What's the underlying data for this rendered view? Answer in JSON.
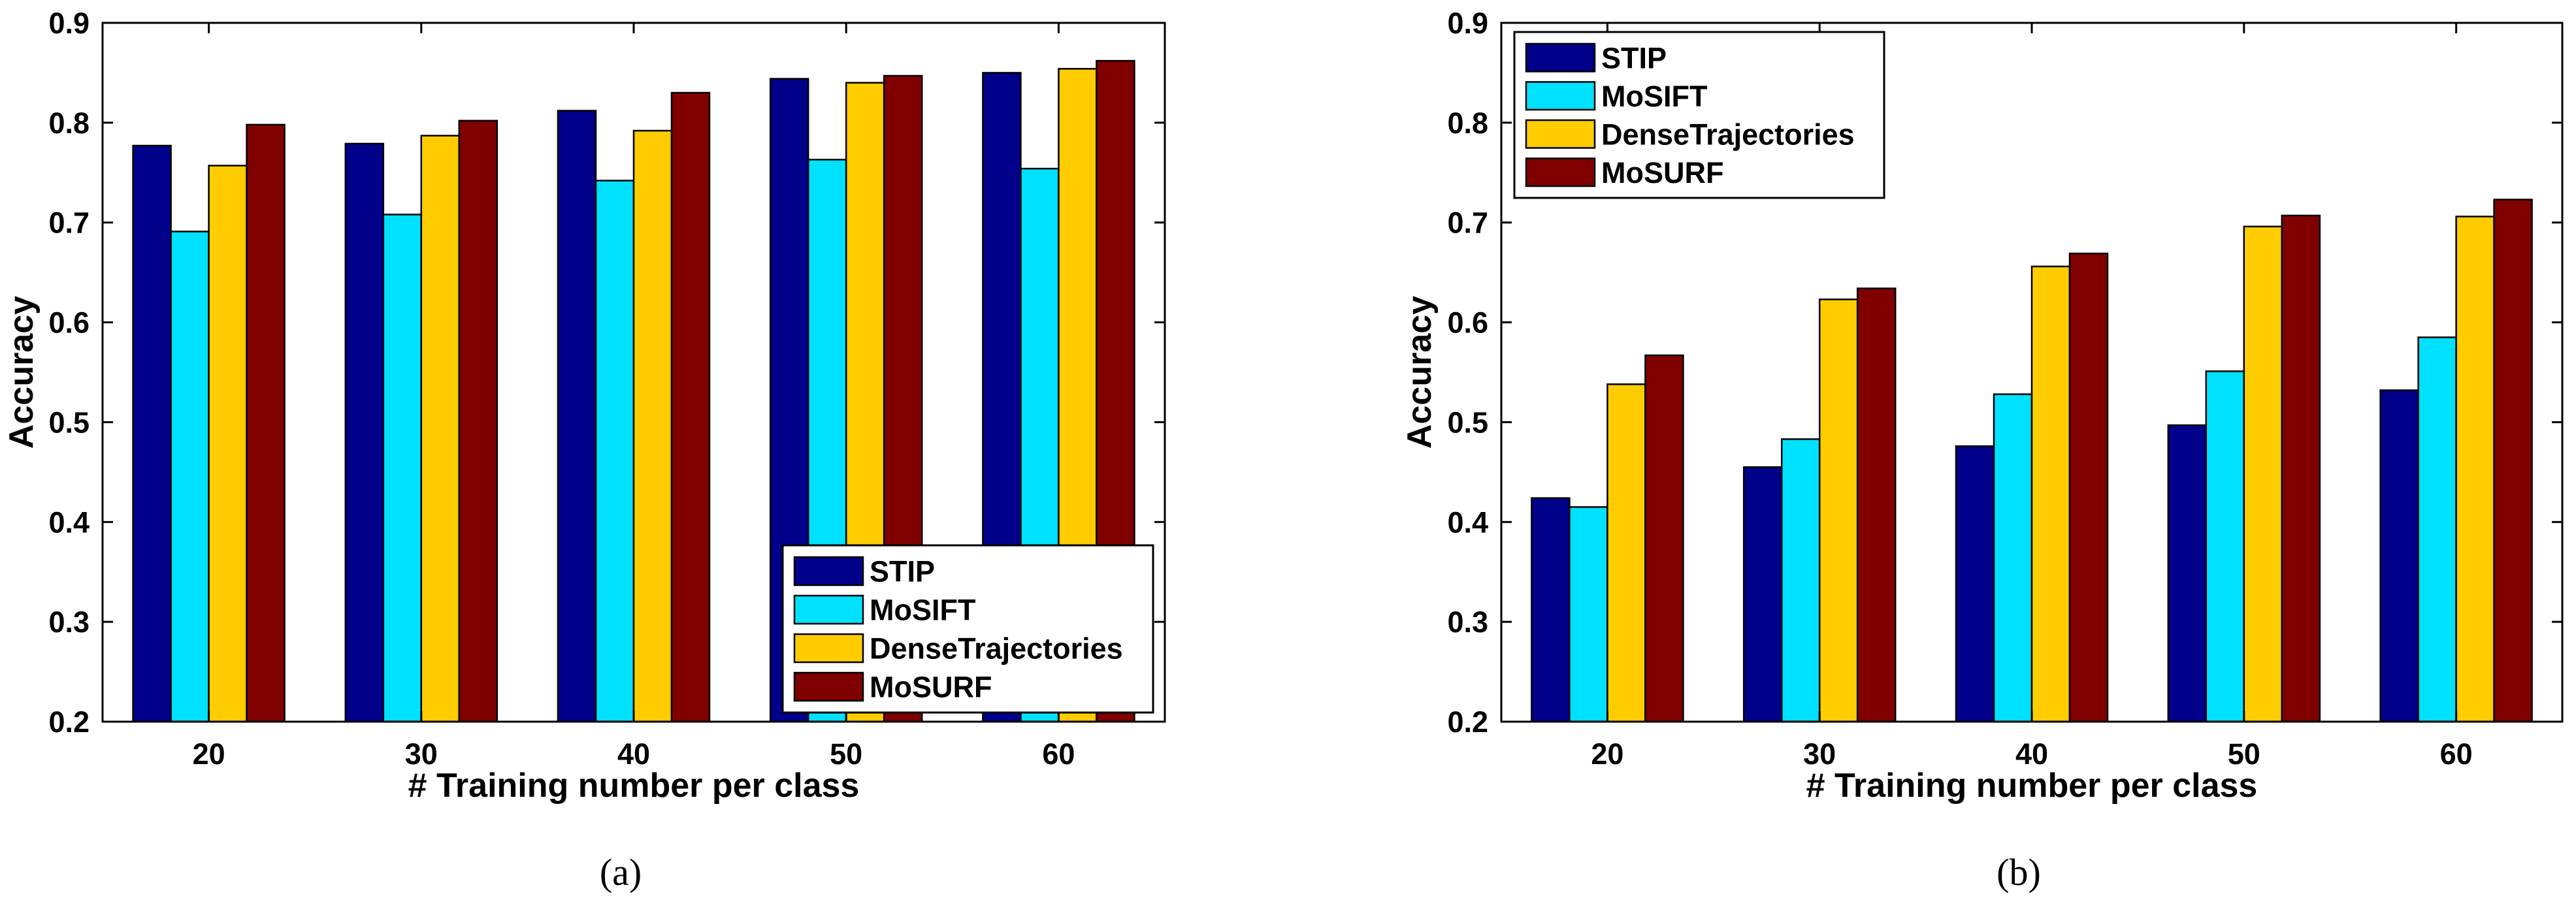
{
  "chart_data": [
    {
      "type": "bar",
      "caption": "(a)",
      "categories": [
        "20",
        "30",
        "40",
        "50",
        "60"
      ],
      "series": [
        {
          "name": "STIP",
          "color": "#00008b",
          "values": [
            0.777,
            0.779,
            0.812,
            0.844,
            0.85
          ]
        },
        {
          "name": "MoSIFT",
          "color": "#00e1ff",
          "values": [
            0.691,
            0.708,
            0.742,
            0.763,
            0.754
          ]
        },
        {
          "name": "DenseTrajectories",
          "color": "#ffcc00",
          "values": [
            0.757,
            0.787,
            0.792,
            0.84,
            0.854
          ]
        },
        {
          "name": "MoSURF",
          "color": "#800000",
          "values": [
            0.798,
            0.802,
            0.83,
            0.847,
            0.862
          ]
        }
      ],
      "xlabel": "# Training number per class",
      "ylabel": "Accuracy",
      "ylim": [
        0.2,
        0.9
      ],
      "yticks": [
        "0.2",
        "0.3",
        "0.4",
        "0.5",
        "0.6",
        "0.7",
        "0.8",
        "0.9"
      ],
      "legend_position": "bottom-right"
    },
    {
      "type": "bar",
      "caption": "(b)",
      "categories": [
        "20",
        "30",
        "40",
        "50",
        "60"
      ],
      "series": [
        {
          "name": "STIP",
          "color": "#00008b",
          "values": [
            0.424,
            0.455,
            0.476,
            0.497,
            0.532
          ]
        },
        {
          "name": "MoSIFT",
          "color": "#00e1ff",
          "values": [
            0.415,
            0.483,
            0.528,
            0.551,
            0.585
          ]
        },
        {
          "name": "DenseTrajectories",
          "color": "#ffcc00",
          "values": [
            0.538,
            0.623,
            0.656,
            0.696,
            0.706
          ]
        },
        {
          "name": "MoSURF",
          "color": "#800000",
          "values": [
            0.567,
            0.634,
            0.669,
            0.707,
            0.723
          ]
        }
      ],
      "xlabel": "# Training number per class",
      "ylabel": "Accuracy",
      "ylim": [
        0.2,
        0.9
      ],
      "yticks": [
        "0.2",
        "0.3",
        "0.4",
        "0.5",
        "0.6",
        "0.7",
        "0.8",
        "0.9"
      ],
      "legend_position": "top-left"
    }
  ]
}
